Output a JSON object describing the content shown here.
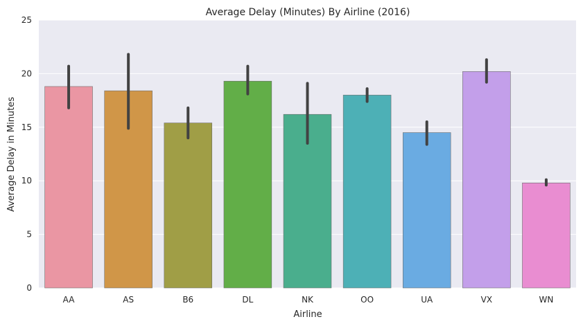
{
  "chart_data": {
    "type": "bar",
    "title": "Average Delay (Minutes) By Airline (2016)",
    "xlabel": "Airline",
    "ylabel": "Average Delay in Minutes",
    "ylim": [
      0,
      25
    ],
    "yticks": [
      "0",
      "5",
      "10",
      "15",
      "20",
      "25"
    ],
    "grid": true,
    "legend": "none",
    "categories": [
      "AA",
      "AS",
      "B6",
      "DL",
      "NK",
      "OO",
      "UA",
      "VX",
      "WN"
    ],
    "values": [
      18.8,
      18.4,
      15.4,
      19.3,
      16.2,
      18.0,
      14.5,
      20.2,
      9.8
    ],
    "error_low": [
      16.8,
      14.9,
      14.0,
      18.1,
      13.5,
      17.4,
      13.4,
      19.2,
      9.6
    ],
    "error_high": [
      20.7,
      21.8,
      16.8,
      20.7,
      19.1,
      18.6,
      15.5,
      21.3,
      10.1
    ],
    "colors": [
      "#ea96a3",
      "#d09648",
      "#a09e46",
      "#62ae48",
      "#4aae8d",
      "#4db0b6",
      "#6aabe2",
      "#c39fea",
      "#e98dd1"
    ],
    "background": "#eaeaf2",
    "error_color": "#424242"
  }
}
